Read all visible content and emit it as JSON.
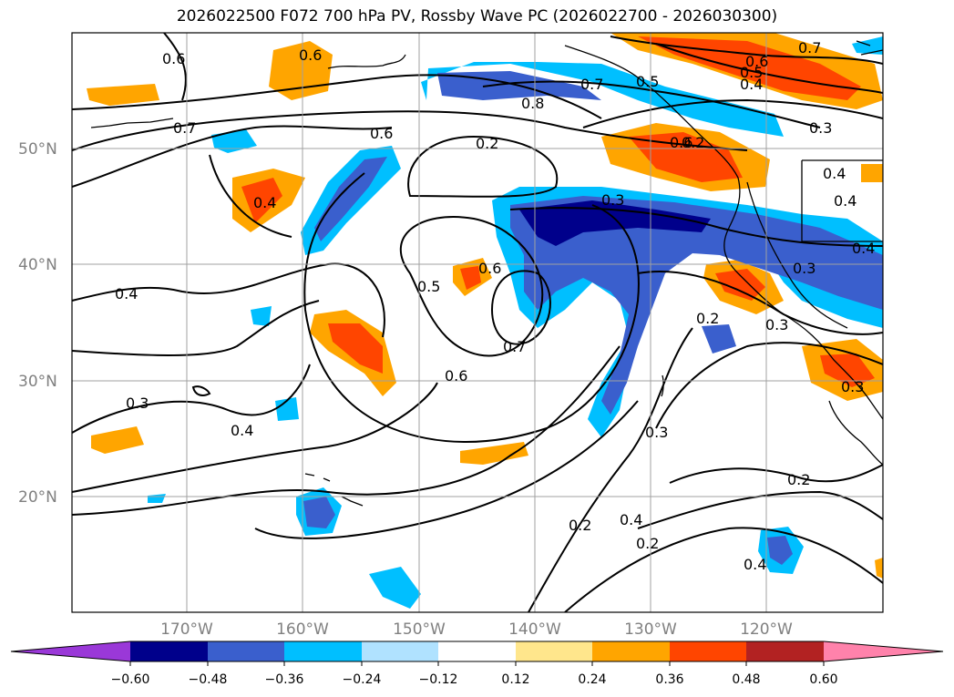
{
  "title": "2026022500 F072 700 hPa PV, Rossby Wave PC (2026022700 - 2026030300)",
  "map": {
    "latitude_labels": [
      "50°N",
      "40°N",
      "30°N",
      "20°N"
    ],
    "longitude_labels": [
      "170°W",
      "160°W",
      "150°W",
      "140°W",
      "130°W",
      "120°W"
    ],
    "grid_color": "#a0a0a0",
    "coastline_color": "#000000",
    "contour_color": "#000000",
    "contour_labels": [
      "0.6",
      "0.6",
      "0.7",
      "0.6",
      "0.8",
      "0.7",
      "0.5",
      "0.6",
      "0.5",
      "0.4",
      "0.7",
      "0.2",
      "0.6",
      "0.2",
      "0.3",
      "0.3",
      "0.4",
      "0.4",
      "0.4",
      "0.4",
      "0.5",
      "0.6",
      "0.7",
      "0.3",
      "0.2",
      "0.3",
      "0.3",
      "0.4",
      "0.6",
      "0.3",
      "0.4",
      "0.3",
      "0.2",
      "0.2",
      "0.4",
      "0.2",
      "0.4"
    ]
  },
  "colorbar": {
    "colors": [
      "#9a38d8",
      "#00008b",
      "#3a5fcd",
      "#00bfff",
      "#b0e2ff",
      "#ffffff",
      "#ffe68c",
      "#ffa500",
      "#ff4500",
      "#b22222",
      "#ff82ab"
    ],
    "tick_labels": [
      "−0.60",
      "−0.48",
      "−0.36",
      "−0.24",
      "−0.12",
      "0.12",
      "0.24",
      "0.36",
      "0.48",
      "0.60"
    ]
  }
}
